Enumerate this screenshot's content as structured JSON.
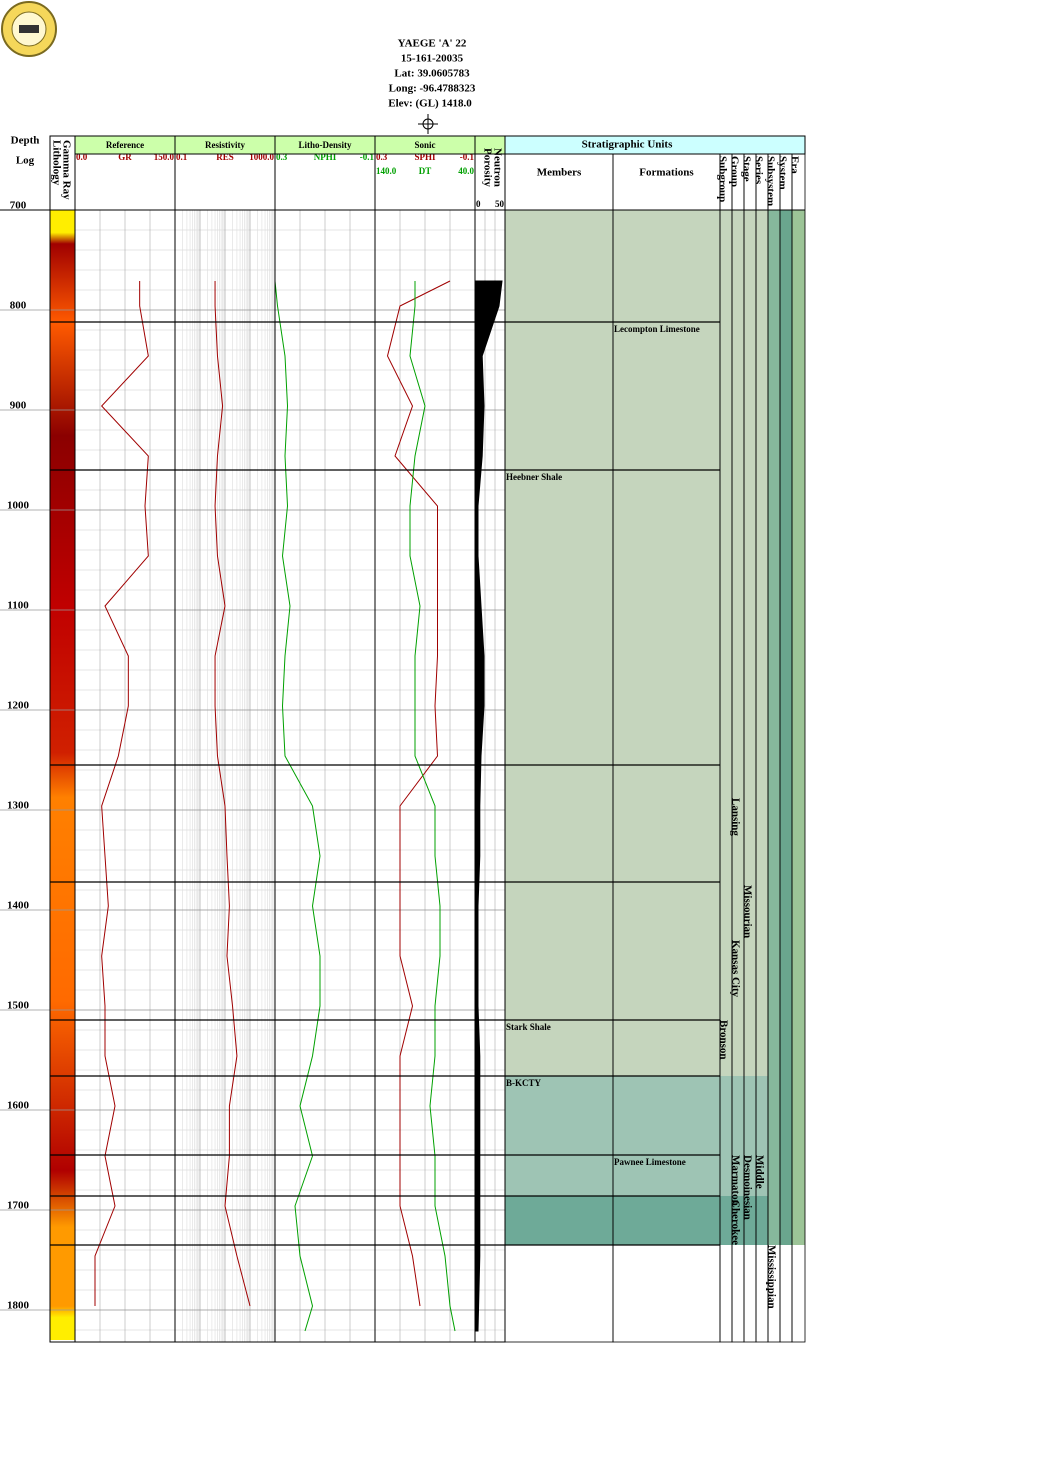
{
  "header": {
    "well": "YAEGE 'A' 22",
    "api": "15-161-20035",
    "lat": "Lat: 39.0605783",
    "long": "Long: -96.4788323",
    "elev": "Elev: (GL) 1418.0"
  },
  "chart_data": {
    "type": "well-log",
    "depth_title": "Depth",
    "log_title": "Log",
    "lithology_title": "Lithology",
    "gamma_title": "Gamma Ray",
    "ylim": [
      700,
      1836
    ],
    "yticks": [
      700,
      800,
      900,
      1000,
      1100,
      1200,
      1300,
      1400,
      1500,
      1600,
      1700,
      1800
    ],
    "depths": [
      775,
      800,
      850,
      900,
      950,
      1000,
      1050,
      1100,
      1150,
      1200,
      1250,
      1300,
      1350,
      1400,
      1450,
      1500,
      1550,
      1600,
      1650,
      1700,
      1750,
      1800,
      1825
    ],
    "tracks": [
      {
        "title": "Reference",
        "curves": [
          {
            "name": "GR",
            "color": "#a00000",
            "scale": [
              {
                "value": 0,
                "label": "0.0"
              },
              {
                "value": 150,
                "label": "150.0"
              }
            ],
            "values": [
              97,
              97,
              110,
              40,
              110,
              105,
              110,
              45,
              80,
              80,
              65,
              40,
              45,
              50,
              40,
              45,
              45,
              60,
              45,
              60,
              30,
              30,
              null
            ]
          }
        ]
      },
      {
        "title": "Resistivity",
        "log": true,
        "curves": [
          {
            "name": "RES",
            "color": "#a00000",
            "scale": [
              0.1,
              {
                "value": 1000,
                "label": "1000.0"
              }
            ],
            "values": [
              4,
              4,
              5,
              8,
              5,
              4,
              5,
              10,
              4,
              4,
              5,
              10,
              12,
              15,
              12,
              20,
              30,
              15,
              15,
              10,
              30,
              100,
              null
            ]
          }
        ]
      },
      {
        "title": "Litho-Density",
        "curves": [
          {
            "name": "NPHI",
            "color": "#00a000",
            "scale": [
              0.3,
              -0.1
            ],
            "values": [
              0.3,
              0.29,
              0.26,
              0.25,
              0.26,
              0.25,
              0.27,
              0.24,
              0.26,
              0.27,
              0.26,
              0.15,
              0.12,
              0.15,
              0.12,
              0.12,
              0.15,
              0.2,
              0.15,
              0.22,
              0.2,
              0.15,
              0.18
            ]
          }
        ]
      },
      {
        "title": "Sonic",
        "curves": [
          {
            "name": "SPHI",
            "color": "#a00000",
            "scale": [
              0.3,
              -0.1
            ],
            "values": [
              0.0,
              0.2,
              0.25,
              0.15,
              0.22,
              0.05,
              0.05,
              0.05,
              0.05,
              0.06,
              0.05,
              0.2,
              0.2,
              0.2,
              0.2,
              0.15,
              0.2,
              0.2,
              0.2,
              0.2,
              0.15,
              0.12,
              null
            ]
          },
          {
            "name": "DT",
            "color": "#00a000",
            "scale": [
              {
                "value": 140,
                "label": "140.0"
              },
              {
                "value": 40,
                "label": "40.0"
              }
            ],
            "values": [
              100,
              100,
              105,
              90,
              100,
              105,
              105,
              95,
              100,
              100,
              100,
              80,
              80,
              75,
              75,
              80,
              80,
              85,
              80,
              80,
              70,
              65,
              60
            ]
          }
        ]
      },
      {
        "title": "Porosity",
        "subtitle": "Neutron",
        "curves": [
          {
            "color": "#000000",
            "fill": true,
            "scale": [
              0,
              50
            ],
            "values": [
              45,
              40,
              12,
              15,
              12,
              5,
              5,
              10,
              15,
              15,
              10,
              8,
              8,
              5,
              5,
              5,
              8,
              8,
              8,
              8,
              8,
              6,
              5
            ]
          }
        ]
      }
    ],
    "strat_title": "Stratigraphic Units",
    "columns": [
      "Members",
      "Formations",
      "Subgroup",
      "Group",
      "Stage",
      "Series",
      "Subsystem",
      "System",
      "Era"
    ],
    "boundaries": [
      816,
      964,
      1259,
      1376,
      1514,
      1570,
      1649,
      1690,
      1739
    ],
    "zones": [
      {
        "top": 704,
        "base": 1570,
        "color": "#c5d5bd"
      },
      {
        "top": 1570,
        "base": 1690,
        "color": "#9ec4b4"
      },
      {
        "top": 1690,
        "base": 1739,
        "color": "#6eaa98"
      }
    ],
    "tops": [
      {
        "name": "Lecompton Limestone",
        "column": 1,
        "depth": 816
      },
      {
        "name": "Heebner Shale",
        "column": 0,
        "depth": 964
      },
      {
        "name": "Stark Shale",
        "column": 0,
        "depth": 1514
      },
      {
        "name": "B-KCTY",
        "column": 0,
        "depth": 1570
      },
      {
        "name": "Pawnee Limestone",
        "column": 1,
        "depth": 1649
      }
    ],
    "units": [
      {
        "name": "Lansing",
        "column": 3,
        "depth": 1292
      },
      {
        "name": "Missourian",
        "column": 4,
        "depth": 1379
      },
      {
        "name": "Kansas City",
        "column": 3,
        "depth": 1434
      },
      {
        "name": "Bronson",
        "column": 2,
        "depth": 1514
      },
      {
        "name": "Middle",
        "column": 5,
        "depth": 1649
      },
      {
        "name": "Desmoinesian",
        "column": 4,
        "depth": 1649
      },
      {
        "name": "Marmaton",
        "column": 3,
        "depth": 1649
      },
      {
        "name": "Cherokee",
        "column": 3,
        "depth": 1694
      },
      {
        "name": "Mississippian",
        "column": 6,
        "depth": 1739
      }
    ]
  }
}
